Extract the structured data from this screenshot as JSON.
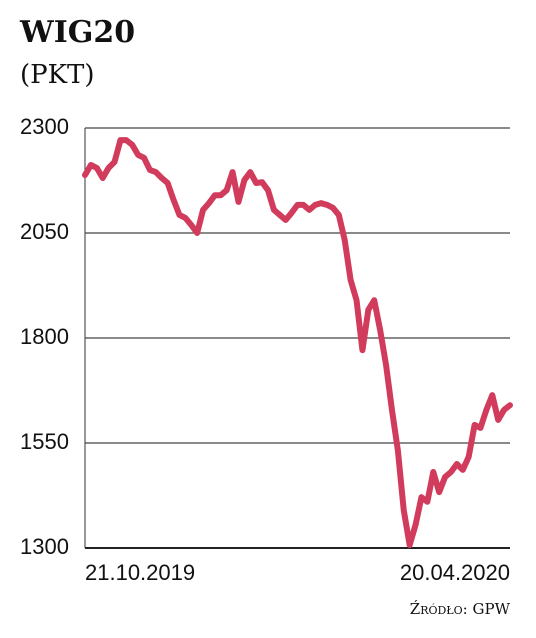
{
  "chart_data": {
    "type": "line",
    "title": "WIG20",
    "subtitle": "(PKT)",
    "source": "Źródło: GPW",
    "categories": [
      "21.10.2019",
      null,
      null,
      null,
      null,
      null,
      null,
      null,
      null,
      null,
      null,
      null,
      null,
      null,
      null,
      null,
      null,
      null,
      null,
      null,
      null,
      null,
      null,
      null,
      null,
      null,
      null,
      null,
      null,
      null,
      null,
      null,
      null,
      null,
      null,
      null,
      null,
      null,
      null,
      null,
      null,
      null,
      null,
      null,
      null,
      null,
      null,
      null,
      null,
      null,
      null,
      null,
      null,
      null,
      null,
      null,
      null,
      null,
      null,
      null,
      null,
      null,
      null,
      null,
      null,
      null,
      null,
      null,
      null,
      null,
      null,
      null,
      "20.04.2020"
    ],
    "series": [
      {
        "name": "WIG20",
        "color": "#d23c5c",
        "values": [
          2188,
          2212,
          2205,
          2181,
          2205,
          2219,
          2271,
          2271,
          2260,
          2236,
          2229,
          2200,
          2195,
          2181,
          2169,
          2129,
          2093,
          2086,
          2069,
          2050,
          2105,
          2121,
          2140,
          2140,
          2152,
          2195,
          2124,
          2176,
          2195,
          2169,
          2171,
          2152,
          2105,
          2093,
          2081,
          2098,
          2117,
          2117,
          2105,
          2117,
          2121,
          2117,
          2110,
          2093,
          2033,
          1938,
          1890,
          1771,
          1867,
          1890,
          1819,
          1736,
          1629,
          1533,
          1390,
          1307,
          1355,
          1421,
          1410,
          1481,
          1433,
          1469,
          1481,
          1500,
          1486,
          1517,
          1593,
          1586,
          1629,
          1664,
          1605,
          1629,
          1640
        ]
      }
    ],
    "ylim": [
      1300,
      2300
    ],
    "yticks": [
      1300,
      1550,
      1800,
      2050,
      2300
    ],
    "grid": true
  }
}
